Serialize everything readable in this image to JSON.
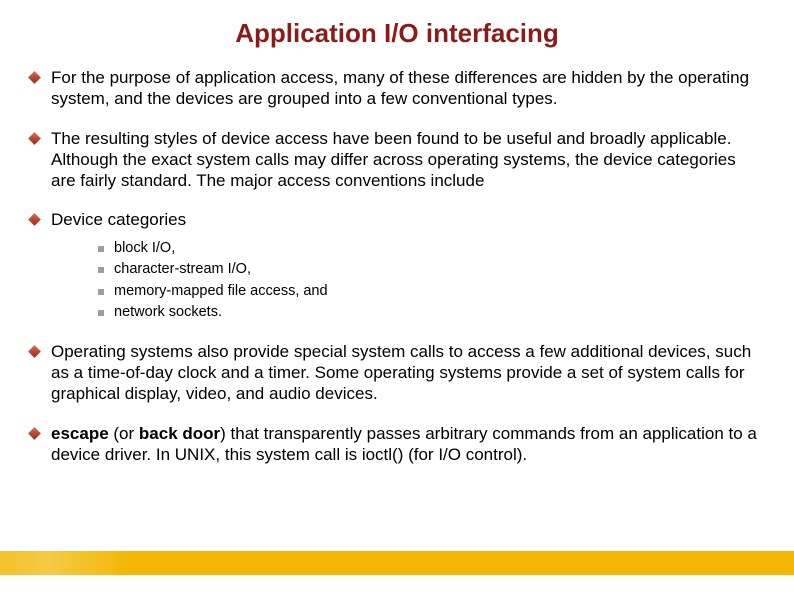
{
  "title": "Application I/O interfacing",
  "colors": {
    "title_color": "#8b1a1a",
    "body_color": "#000000",
    "bullet1_gradient_start": "#d96b4a",
    "bullet1_gradient_end": "#9b2a1c",
    "bullet2_color": "#9e9e9e",
    "footer_bar": "#f2b705",
    "background": "#ffffff"
  },
  "typography": {
    "title_fontsize": 26,
    "body_fontsize": 17,
    "sub_fontsize": 14.5,
    "font_family": "Arial"
  },
  "bullets": [
    {
      "text": "For the purpose of application access, many of these differences are hidden by the operating system, and the devices are grouped into a few conventional types."
    },
    {
      "text": "The resulting styles of device access have been found to be useful and broadly applicable. Although the exact system calls may differ across operating systems, the device categories are fairly standard. The major access conventions include"
    },
    {
      "text": "Device categories",
      "sub": [
        "block I/O,",
        "character-stream I/O,",
        "memory-mapped file access, and",
        "network sockets."
      ]
    },
    {
      "text": "Operating systems also provide special system calls to access a few additional devices, such as a time-of-day clock and a timer. Some operating systems provide a set of system calls for graphical display, video, and audio devices."
    },
    {
      "escape_prefix": "escape",
      "escape_or": " (or ",
      "escape_backdoor": "back door",
      "escape_rest": ") that transparently passes arbitrary commands from an application to a device driver. In UNIX, this system call is ioctl()  (for I/O control)."
    }
  ]
}
